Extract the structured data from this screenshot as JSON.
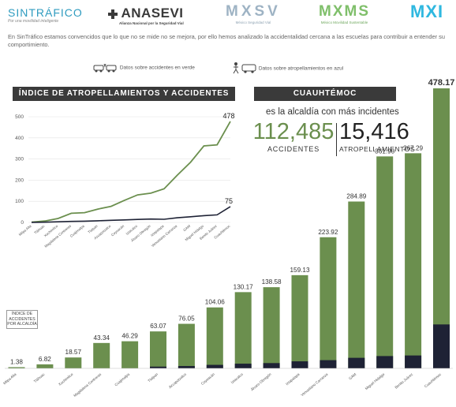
{
  "logos": {
    "sintrafico": "SINTRÁFICO",
    "sintrafico_tag": "Por una movilidad inteligente",
    "anasevi": "ANASEVI",
    "anasevi_tag": "Alianza Nacional por la Seguridad Vial",
    "mxsv": "MXSV",
    "mxsv_tag": "México Seguridad Vial",
    "mxms": "MXMS",
    "mxms_tag": "México Movilidad Sustentable",
    "mxi": "MXI"
  },
  "intro": "En SinTráfico estamos convencidos que lo que no se mide no se mejora, por ello hemos analizado la accidentalidad cercana a las escuelas para contribuir a entender su comportimiento.",
  "legend_green": "Datos sobre accidentes en verde",
  "legend_blue": "Datos sobre atropellamientos en azul",
  "line_title": "ÍNDICE DE ATROPELLAMIENTOS Y ACCIDENTES",
  "highlight": {
    "name": "CUAUHTÉMOC",
    "subtitle": "es la alcaldía con más incidentes",
    "accidents_value": "112,485",
    "accidents_label": "ACCIDENTES",
    "runovers_value": "15,416",
    "runovers_label": "ATROPELLAMIENTOS"
  },
  "bar_note": "ÍNDICE DE ACCIDENTES POR ALCALDÍA",
  "colors": {
    "green": "#6b8f4e",
    "navy": "#1e2235",
    "dark": "#3a3a3a"
  },
  "chart_data": [
    {
      "type": "line",
      "title": "ÍNDICE DE ATROPELLAMIENTOS Y ACCIDENTES",
      "categories": [
        "Milpa Alta",
        "Tláhuac",
        "Xochimilco",
        "Magdalena Contreras",
        "Cuajimalpa",
        "Tlalpan",
        "Azcapotzalco",
        "Coyoacán",
        "Iztacalco",
        "Álvaro Obregón",
        "Iztapalapa",
        "Venustiano Carranza",
        "GAM",
        "Miguel Hidalgo",
        "Benito Juárez",
        "Cuauhtémoc"
      ],
      "ylim": [
        0,
        500
      ],
      "yticks": [
        0,
        100,
        200,
        300,
        400,
        500
      ],
      "series": [
        {
          "values": [
            1.38,
            6.82,
            18.57,
            43.34,
            46.29,
            63.07,
            76.05,
            104.06,
            130.17,
            138.58,
            159.13,
            223.92,
            284.89,
            361.9,
            367.29,
            478.17
          ],
          "end_label": "478"
        },
        {
          "values": [
            0.5,
            1.2,
            3,
            5,
            6,
            8,
            10,
            12,
            14,
            16,
            15,
            22,
            27,
            32,
            36,
            75
          ],
          "end_label": "75"
        }
      ]
    },
    {
      "type": "bar",
      "title": "ÍNDICE DE ACCIDENTES POR ALCALDÍA",
      "categories": [
        "Milpa Alta",
        "Tláhuac",
        "Xochimilco",
        "Magdalena Contreras",
        "Cuajimalpa",
        "Tlalpan",
        "Azcapotzalco",
        "Coyoacán",
        "Iztacalco",
        "Álvaro Obregón",
        "Iztapalapa",
        "Venustiano Carranza",
        "GAM",
        "Miguel Hidalgo",
        "Benito Juárez",
        "Cuauhtémoc"
      ],
      "series": [
        {
          "values": [
            1.38,
            6.82,
            18.57,
            43.34,
            46.29,
            63.07,
            76.05,
            104.06,
            130.17,
            138.58,
            159.13,
            223.92,
            284.89,
            361.9,
            367.29,
            478.17
          ]
        },
        {
          "values": [
            0,
            0,
            0,
            0,
            0,
            3,
            4,
            6,
            8,
            9,
            12,
            14,
            18,
            21,
            22,
            75
          ]
        }
      ],
      "labels": [
        "1.38",
        "6.82",
        "18.57",
        "43.34",
        "46.29",
        "63.07",
        "76.05",
        "104.06",
        "130.17",
        "138.58",
        "159.13",
        "223.92",
        "284.89",
        "361.90",
        "367.29",
        "478.17"
      ]
    }
  ]
}
